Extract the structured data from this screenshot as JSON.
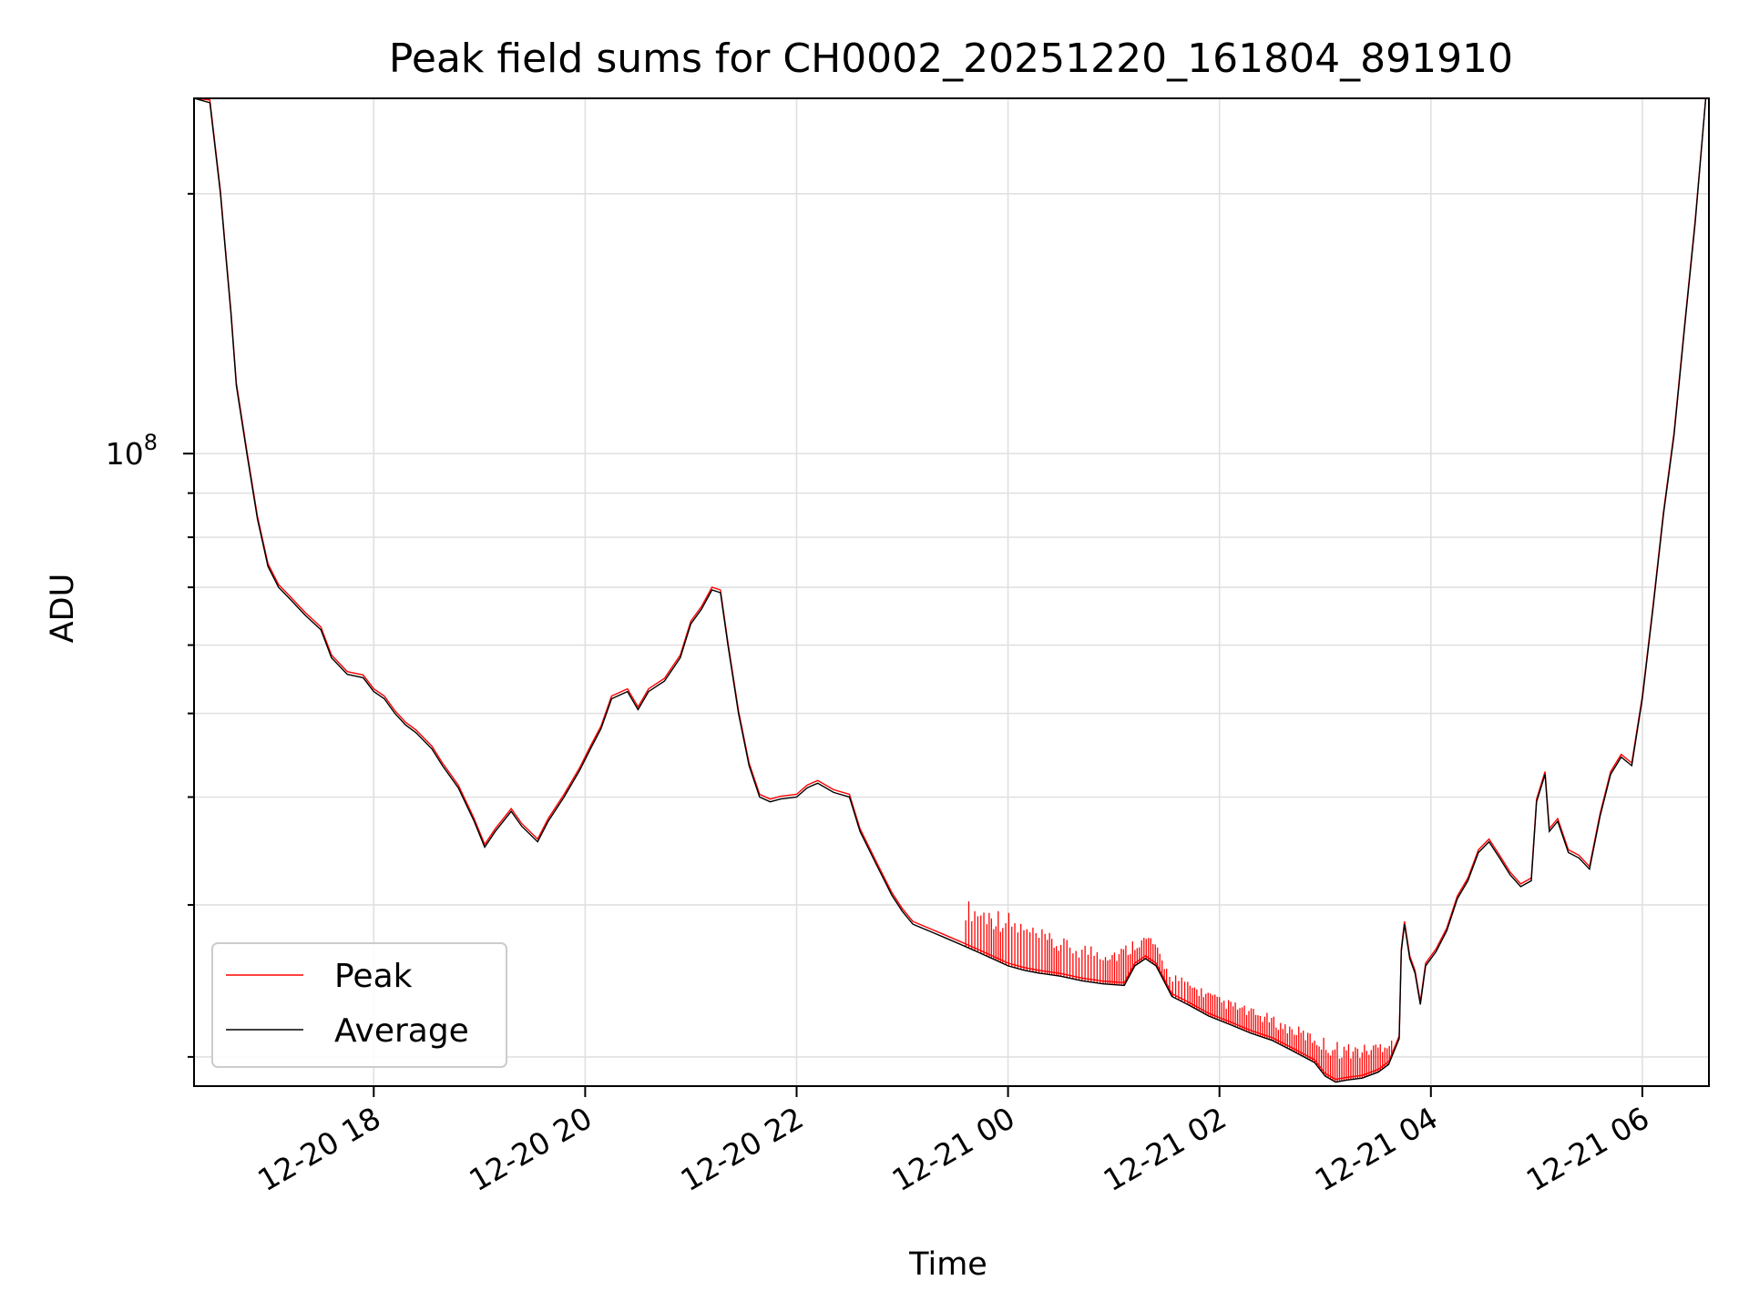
{
  "chart_data": {
    "type": "line",
    "title": "Peak field sums for CH0002_20251220_161804_891910",
    "xlabel": "Time",
    "ylabel": "ADU",
    "yscale": "log",
    "ylim": [
      18500000,
      258000000
    ],
    "xlim": [
      16.3,
      30.63
    ],
    "grid": true,
    "legend_position": "lower-left",
    "x_ticks": [
      {
        "value": 18,
        "label": "12-20 18"
      },
      {
        "value": 20,
        "label": "12-20 20"
      },
      {
        "value": 22,
        "label": "12-20 22"
      },
      {
        "value": 24,
        "label": "12-21 00"
      },
      {
        "value": 26,
        "label": "12-21 02"
      },
      {
        "value": 28,
        "label": "12-21 04"
      },
      {
        "value": 30,
        "label": "12-21 06"
      }
    ],
    "y_major_ticks": [
      {
        "value": 100000000,
        "base": "10",
        "exp": "8"
      }
    ],
    "y_minor_ticks": [
      20000000,
      30000000,
      40000000,
      50000000,
      60000000,
      70000000,
      80000000,
      90000000,
      200000000
    ],
    "series": [
      {
        "name": "Peak",
        "color": "#ff0000"
      },
      {
        "name": "Average",
        "color": "#000000"
      }
    ],
    "x_units": "hours since 2025-12-20 00:00",
    "average_points": [
      [
        16.3,
        258000000
      ],
      [
        16.45,
        255000000
      ],
      [
        16.55,
        200000000
      ],
      [
        16.6,
        170000000
      ],
      [
        16.65,
        145000000
      ],
      [
        16.7,
        120000000
      ],
      [
        16.8,
        100000000
      ],
      [
        16.9,
        84000000
      ],
      [
        17.0,
        74000000
      ],
      [
        17.1,
        70000000
      ],
      [
        17.2,
        68000000
      ],
      [
        17.35,
        65000000
      ],
      [
        17.5,
        62500000
      ],
      [
        17.6,
        58000000
      ],
      [
        17.75,
        55500000
      ],
      [
        17.9,
        55000000
      ],
      [
        18.0,
        53000000
      ],
      [
        18.1,
        52000000
      ],
      [
        18.2,
        50000000
      ],
      [
        18.3,
        48500000
      ],
      [
        18.4,
        47500000
      ],
      [
        18.55,
        45500000
      ],
      [
        18.65,
        43500000
      ],
      [
        18.8,
        41000000
      ],
      [
        18.95,
        37500000
      ],
      [
        19.05,
        35000000
      ],
      [
        19.15,
        36500000
      ],
      [
        19.3,
        38500000
      ],
      [
        19.4,
        37000000
      ],
      [
        19.55,
        35500000
      ],
      [
        19.65,
        37500000
      ],
      [
        19.8,
        40000000
      ],
      [
        19.95,
        43000000
      ],
      [
        20.05,
        45500000
      ],
      [
        20.15,
        48000000
      ],
      [
        20.25,
        52000000
      ],
      [
        20.4,
        53000000
      ],
      [
        20.5,
        50500000
      ],
      [
        20.6,
        53000000
      ],
      [
        20.75,
        54500000
      ],
      [
        20.9,
        58000000
      ],
      [
        21.0,
        63500000
      ],
      [
        21.1,
        66000000
      ],
      [
        21.2,
        69500000
      ],
      [
        21.28,
        69000000
      ],
      [
        21.35,
        60000000
      ],
      [
        21.45,
        50000000
      ],
      [
        21.55,
        43500000
      ],
      [
        21.65,
        40000000
      ],
      [
        21.75,
        39500000
      ],
      [
        21.85,
        39800000
      ],
      [
        22.0,
        40000000
      ],
      [
        22.1,
        41000000
      ],
      [
        22.2,
        41500000
      ],
      [
        22.35,
        40500000
      ],
      [
        22.5,
        40000000
      ],
      [
        22.6,
        36500000
      ],
      [
        22.75,
        33500000
      ],
      [
        22.9,
        30800000
      ],
      [
        23.0,
        29500000
      ],
      [
        23.1,
        28500000
      ],
      [
        23.25,
        28000000
      ],
      [
        23.4,
        27500000
      ],
      [
        23.55,
        27000000
      ],
      [
        23.7,
        26500000
      ],
      [
        23.85,
        26000000
      ],
      [
        24.0,
        25500000
      ],
      [
        24.15,
        25200000
      ],
      [
        24.3,
        25000000
      ],
      [
        24.5,
        24800000
      ],
      [
        24.7,
        24500000
      ],
      [
        24.9,
        24300000
      ],
      [
        25.1,
        24200000
      ],
      [
        25.2,
        25500000
      ],
      [
        25.3,
        26000000
      ],
      [
        25.4,
        25500000
      ],
      [
        25.55,
        23500000
      ],
      [
        25.7,
        23000000
      ],
      [
        25.9,
        22300000
      ],
      [
        26.1,
        21800000
      ],
      [
        26.3,
        21300000
      ],
      [
        26.5,
        20900000
      ],
      [
        26.7,
        20300000
      ],
      [
        26.9,
        19700000
      ],
      [
        27.0,
        19000000
      ],
      [
        27.1,
        18700000
      ],
      [
        27.2,
        18800000
      ],
      [
        27.35,
        18900000
      ],
      [
        27.5,
        19200000
      ],
      [
        27.6,
        19600000
      ],
      [
        27.7,
        21000000
      ],
      [
        27.72,
        26500000
      ],
      [
        27.75,
        28500000
      ],
      [
        27.8,
        26000000
      ],
      [
        27.85,
        25000000
      ],
      [
        27.9,
        23000000
      ],
      [
        27.95,
        25500000
      ],
      [
        28.05,
        26500000
      ],
      [
        28.15,
        28000000
      ],
      [
        28.25,
        30500000
      ],
      [
        28.35,
        32000000
      ],
      [
        28.45,
        34500000
      ],
      [
        28.55,
        35500000
      ],
      [
        28.65,
        34000000
      ],
      [
        28.75,
        32500000
      ],
      [
        28.85,
        31500000
      ],
      [
        28.95,
        32000000
      ],
      [
        29.0,
        39500000
      ],
      [
        29.08,
        42500000
      ],
      [
        29.12,
        36500000
      ],
      [
        29.2,
        37500000
      ],
      [
        29.3,
        34500000
      ],
      [
        29.4,
        34000000
      ],
      [
        29.5,
        33000000
      ],
      [
        29.6,
        38000000
      ],
      [
        29.7,
        42500000
      ],
      [
        29.8,
        44500000
      ],
      [
        29.9,
        43500000
      ],
      [
        30.0,
        52000000
      ],
      [
        30.1,
        66000000
      ],
      [
        30.2,
        85000000
      ],
      [
        30.3,
        105000000
      ],
      [
        30.4,
        140000000
      ],
      [
        30.5,
        185000000
      ],
      [
        30.6,
        258000000
      ],
      [
        30.63,
        258000000
      ]
    ],
    "peak_spikes": [
      [
        23.6,
        30500000
      ],
      [
        23.8,
        30000000
      ],
      [
        23.95,
        29800000
      ],
      [
        24.15,
        28800000
      ],
      [
        24.35,
        28000000
      ],
      [
        24.5,
        27500000
      ],
      [
        24.7,
        27200000
      ],
      [
        24.9,
        27000000
      ],
      [
        25.05,
        26900000
      ],
      [
        25.2,
        27500000
      ],
      [
        25.35,
        27800000
      ],
      [
        25.5,
        25500000
      ],
      [
        25.7,
        24500000
      ],
      [
        25.85,
        24100000
      ],
      [
        26.0,
        23500000
      ],
      [
        26.15,
        23200000
      ],
      [
        26.3,
        22800000
      ],
      [
        26.45,
        22500000
      ],
      [
        26.6,
        22000000
      ],
      [
        26.75,
        21700000
      ],
      [
        26.9,
        21300000
      ],
      [
        27.05,
        21000000
      ],
      [
        27.2,
        20800000
      ],
      [
        27.35,
        20700000
      ],
      [
        27.5,
        20900000
      ],
      [
        27.65,
        21200000
      ]
    ]
  },
  "legend": {
    "peak_label": "Peak",
    "average_label": "Average"
  }
}
